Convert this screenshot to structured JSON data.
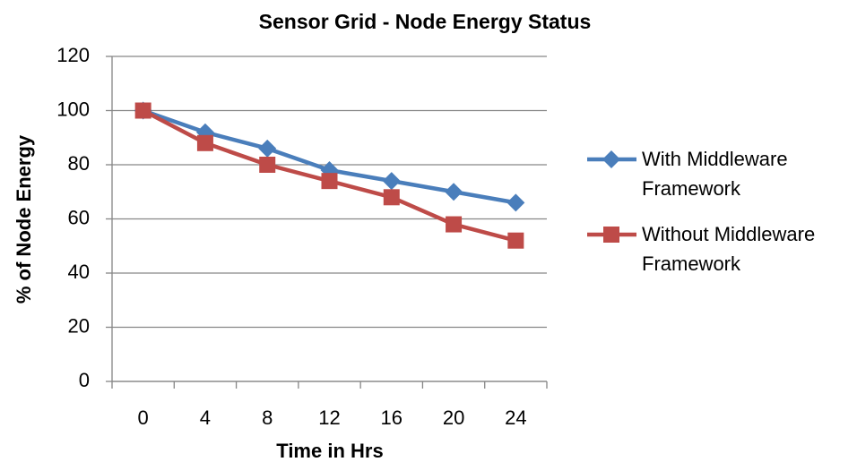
{
  "chart_data": {
    "type": "line",
    "title": "Sensor Grid - Node Energy Status",
    "x_label": "Time in Hrs",
    "y_label": "% of Node Energy",
    "categories": [
      "0",
      "4",
      "8",
      "12",
      "16",
      "20",
      "24"
    ],
    "series": [
      {
        "name": "With Middleware Framework",
        "color": "#4a7ebb",
        "marker": "diamond",
        "values": [
          100,
          92,
          86,
          78,
          74,
          70,
          66
        ]
      },
      {
        "name": "Without Middleware Framework",
        "color": "#be4b48",
        "marker": "square",
        "values": [
          100,
          88,
          80,
          74,
          68,
          58,
          52
        ]
      }
    ],
    "ylim": [
      0,
      120
    ],
    "yticks": [
      0,
      20,
      40,
      60,
      80,
      100,
      120
    ],
    "grid": true,
    "legend": "right"
  }
}
